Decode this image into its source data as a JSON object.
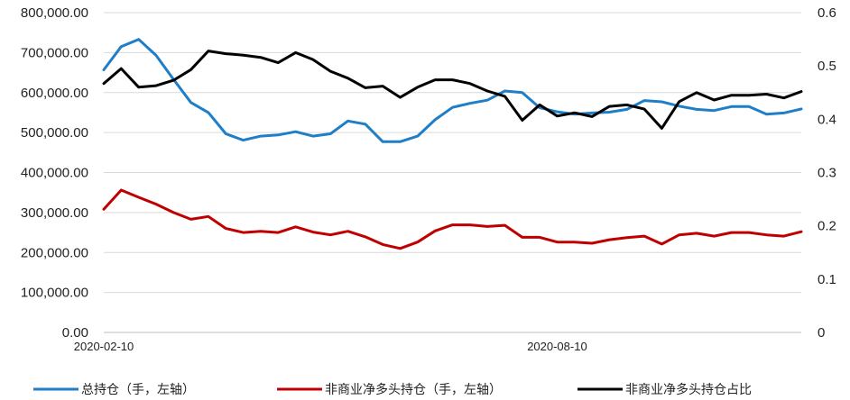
{
  "chart_data": {
    "type": "line",
    "title": "",
    "x_tick_labels": [
      "2020-02-10",
      "2020-08-10"
    ],
    "y_left": {
      "min": 0,
      "max": 800000,
      "step": 100000,
      "tick_labels": [
        "0.00",
        "100,000.00",
        "200,000.00",
        "300,000.00",
        "400,000.00",
        "500,000.00",
        "600,000.00",
        "700,000.00",
        "800,000.00"
      ]
    },
    "y_right": {
      "min": 0,
      "max": 0.6,
      "step": 0.1,
      "tick_labels": [
        "0",
        "0.1",
        "0.2",
        "0.3",
        "0.4",
        "0.5",
        "0.6"
      ]
    },
    "grid": "horizontal",
    "legend_position": "bottom",
    "series": [
      {
        "name": "总持仓（手，左轴）",
        "axis": "left",
        "color": "#1f7ec8",
        "values": [
          657000,
          715000,
          733000,
          693000,
          633000,
          575000,
          550000,
          497000,
          481000,
          491000,
          494000,
          502000,
          491000,
          497000,
          529000,
          521000,
          477000,
          477000,
          491000,
          532000,
          563000,
          573000,
          581000,
          604000,
          600000,
          562000,
          552000,
          546000,
          549000,
          551000,
          558000,
          580000,
          577000,
          566000,
          558000,
          555000,
          565000,
          565000,
          546000,
          549000,
          559000
        ]
      },
      {
        "name": "非商业净多头持仓（手，左轴）",
        "axis": "left",
        "color": "#c00000",
        "values": [
          308000,
          356000,
          338000,
          321000,
          300000,
          283000,
          290000,
          260000,
          250000,
          253000,
          250000,
          264000,
          251000,
          244000,
          253000,
          239000,
          220000,
          210000,
          226000,
          254000,
          269000,
          269000,
          265000,
          268000,
          238000,
          238000,
          226000,
          226000,
          223000,
          232000,
          237000,
          241000,
          221000,
          244000,
          248000,
          241000,
          250000,
          250000,
          244000,
          241000,
          252000
        ]
      },
      {
        "name": "非商业净多头持仓占比",
        "axis": "right",
        "color": "#000000",
        "values": [
          0.467,
          0.495,
          0.46,
          0.463,
          0.473,
          0.493,
          0.528,
          0.523,
          0.52,
          0.516,
          0.506,
          0.525,
          0.512,
          0.49,
          0.477,
          0.459,
          0.462,
          0.441,
          0.46,
          0.474,
          0.474,
          0.467,
          0.453,
          0.443,
          0.398,
          0.427,
          0.406,
          0.412,
          0.405,
          0.424,
          0.427,
          0.419,
          0.383,
          0.433,
          0.45,
          0.436,
          0.445,
          0.445,
          0.447,
          0.44,
          0.452
        ]
      }
    ]
  }
}
